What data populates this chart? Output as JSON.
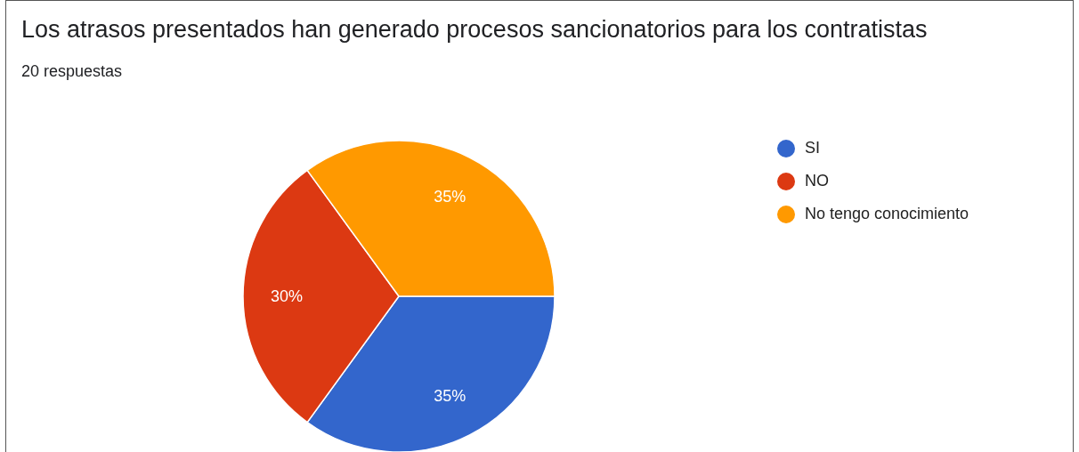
{
  "chart_data": {
    "type": "pie",
    "title": "Los atrasos presentados han generado procesos sancionatorios para los contratistas",
    "subtitle": "20 respuestas",
    "categories": [
      "SI",
      "NO",
      "No tengo conocimiento"
    ],
    "values": [
      35,
      30,
      35
    ],
    "colors": [
      "#3366cc",
      "#dc3912",
      "#ff9900"
    ],
    "value_labels": [
      "35%",
      "30%",
      "35%"
    ],
    "legend": "right"
  }
}
